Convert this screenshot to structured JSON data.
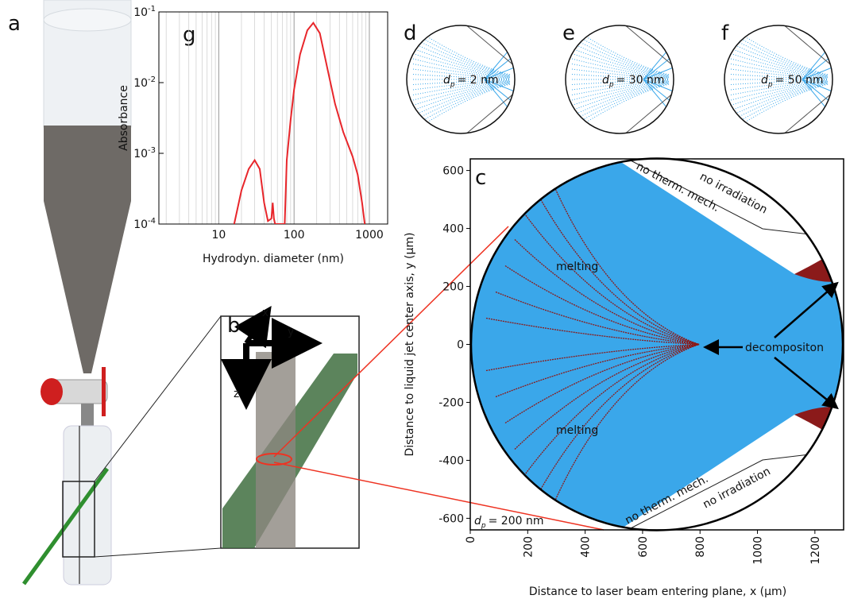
{
  "panel_labels": [
    "a",
    "b",
    "c",
    "d",
    "e",
    "f",
    "g"
  ],
  "setup_axes": [
    "x",
    "y",
    "z"
  ],
  "sim_panels": [
    {
      "symbol": "d",
      "subscript": "p",
      "value": "= 2 nm"
    },
    {
      "symbol": "d",
      "subscript": "p",
      "value": "= 30 nm"
    },
    {
      "symbol": "d",
      "subscript": "p",
      "value": "= 50 nm"
    }
  ],
  "chart_data": [
    {
      "type": "line",
      "xlabel": "Hydrodyn. diameter (nm)",
      "ylabel": "Absorbance",
      "xlog": true,
      "ylog": true,
      "grid": true,
      "color": "#e8262b",
      "xlim": [
        1.6,
        1750
      ],
      "ylim": [
        0.0001,
        0.1
      ],
      "xticks": [
        10,
        100,
        1000
      ],
      "yticks": [
        {
          "value": 0.0001,
          "label": "10^-4"
        },
        {
          "value": 0.001,
          "label": "10^-3"
        },
        {
          "value": 0.01,
          "label": "10^-2"
        },
        {
          "value": 0.1,
          "label": "10^-1"
        }
      ],
      "x": [
        16,
        20,
        25,
        30,
        35,
        40,
        45,
        50,
        52,
        54,
        56,
        75,
        80,
        90,
        100,
        120,
        150,
        180,
        220,
        280,
        350,
        450,
        600,
        700,
        800,
        870
      ],
      "values": [
        0.0001,
        0.0003,
        0.0006,
        0.0008,
        0.0006,
        0.0002,
        0.00011,
        0.00012,
        0.0002,
        0.00012,
        0.0001,
        0.0001,
        0.0008,
        0.003,
        0.008,
        0.025,
        0.055,
        0.07,
        0.05,
        0.015,
        0.005,
        0.002,
        0.0009,
        0.0005,
        0.0002,
        0.0001
      ]
    },
    {
      "type": "scatter",
      "xlabel": "Distance to laser beam entering plane, x (µm)",
      "ylabel": "Distance to liquid jet center axis, y (µm)",
      "xlim": [
        0,
        1300
      ],
      "ylim": [
        -640,
        640
      ],
      "xticks": [
        0,
        200,
        400,
        600,
        800,
        1000,
        1200
      ],
      "yticks": [
        -600,
        -400,
        -200,
        0,
        200,
        400,
        600
      ],
      "annotations": [
        "melting",
        "melting",
        "decompositon",
        "no therm. mech.",
        "no therm. mech.",
        "no irradiation",
        "no irradiation"
      ],
      "size_label": {
        "symbol": "d",
        "subscript": "p",
        "value": "= 200 nm"
      }
    }
  ]
}
